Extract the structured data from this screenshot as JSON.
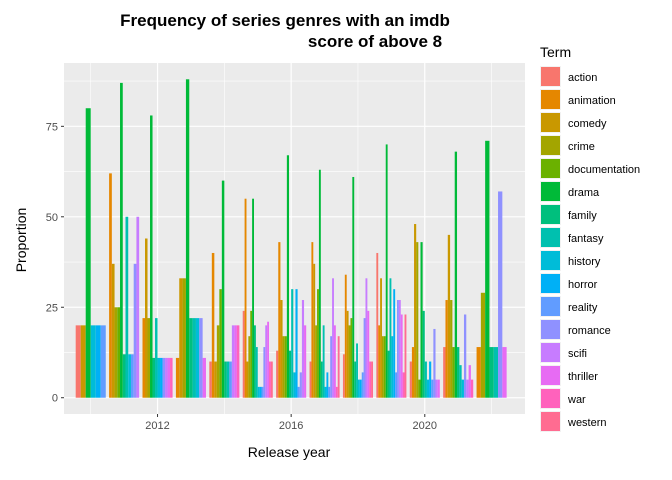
{
  "chart_data": {
    "type": "bar",
    "title_lines": [
      "Frequency of series genres with an imdb",
      "score of above 8"
    ],
    "xlabel": "Release year",
    "ylabel": "Proportion",
    "legend_title": "Term",
    "legend_position": "right",
    "grid": true,
    "xlim": [
      2009.2,
      2023.0
    ],
    "ylim": [
      -4.5,
      92.5
    ],
    "x_ticks": [
      2012,
      2016,
      2020
    ],
    "y_ticks": [
      0,
      25,
      50,
      75
    ],
    "terms": [
      {
        "name": "action",
        "color": "#F8766D"
      },
      {
        "name": "animation",
        "color": "#E58700"
      },
      {
        "name": "comedy",
        "color": "#C99800"
      },
      {
        "name": "crime",
        "color": "#A3A500"
      },
      {
        "name": "documentation",
        "color": "#6BB100"
      },
      {
        "name": "drama",
        "color": "#00BA38"
      },
      {
        "name": "family",
        "color": "#00BF7D"
      },
      {
        "name": "fantasy",
        "color": "#00C0AF"
      },
      {
        "name": "history",
        "color": "#00BCD8"
      },
      {
        "name": "horror",
        "color": "#00B0F6"
      },
      {
        "name": "reality",
        "color": "#619CFF"
      },
      {
        "name": "romance",
        "color": "#8F91FF"
      },
      {
        "name": "scifi",
        "color": "#C77CFF"
      },
      {
        "name": "thriller",
        "color": "#E76BF3"
      },
      {
        "name": "war",
        "color": "#FF62BC"
      },
      {
        "name": "western",
        "color": "#FF6C91"
      }
    ],
    "groups": [
      {
        "x": 2010,
        "bars": [
          {
            "term": "action",
            "value": 20
          },
          {
            "term": "comedy",
            "value": 20
          },
          {
            "term": "drama",
            "value": 80
          },
          {
            "term": "history",
            "value": 20
          },
          {
            "term": "horror",
            "value": 20
          },
          {
            "term": "reality",
            "value": 20
          }
        ]
      },
      {
        "x": 2011,
        "bars": [
          {
            "term": "animation",
            "value": 62
          },
          {
            "term": "comedy",
            "value": 37
          },
          {
            "term": "crime",
            "value": 25
          },
          {
            "term": "documentation",
            "value": 25
          },
          {
            "term": "drama",
            "value": 87
          },
          {
            "term": "family",
            "value": 12
          },
          {
            "term": "fantasy",
            "value": 50
          },
          {
            "term": "history",
            "value": 12
          },
          {
            "term": "reality",
            "value": 12
          },
          {
            "term": "romance",
            "value": 37
          },
          {
            "term": "scifi",
            "value": 50
          }
        ]
      },
      {
        "x": 2012,
        "bars": [
          {
            "term": "animation",
            "value": 22
          },
          {
            "term": "comedy",
            "value": 44
          },
          {
            "term": "crime",
            "value": 22
          },
          {
            "term": "drama",
            "value": 78
          },
          {
            "term": "family",
            "value": 11
          },
          {
            "term": "fantasy",
            "value": 22
          },
          {
            "term": "history",
            "value": 11
          },
          {
            "term": "horror",
            "value": 11
          },
          {
            "term": "romance",
            "value": 11
          },
          {
            "term": "scifi",
            "value": 11
          },
          {
            "term": "thriller",
            "value": 11
          },
          {
            "term": "war",
            "value": 11
          }
        ]
      },
      {
        "x": 2013,
        "bars": [
          {
            "term": "animation",
            "value": 11
          },
          {
            "term": "comedy",
            "value": 33
          },
          {
            "term": "crime",
            "value": 33
          },
          {
            "term": "drama",
            "value": 88
          },
          {
            "term": "family",
            "value": 22
          },
          {
            "term": "fantasy",
            "value": 22
          },
          {
            "term": "history",
            "value": 22
          },
          {
            "term": "romance",
            "value": 22
          },
          {
            "term": "thriller",
            "value": 11
          }
        ]
      },
      {
        "x": 2014,
        "bars": [
          {
            "term": "action",
            "value": 10
          },
          {
            "term": "animation",
            "value": 40
          },
          {
            "term": "comedy",
            "value": 10
          },
          {
            "term": "crime",
            "value": 20
          },
          {
            "term": "documentation",
            "value": 30
          },
          {
            "term": "drama",
            "value": 60
          },
          {
            "term": "family",
            "value": 10
          },
          {
            "term": "fantasy",
            "value": 10
          },
          {
            "term": "reality",
            "value": 10
          },
          {
            "term": "scifi",
            "value": 20
          },
          {
            "term": "thriller",
            "value": 20
          },
          {
            "term": "war",
            "value": 20
          }
        ]
      },
      {
        "x": 2015,
        "bars": [
          {
            "term": "action",
            "value": 24
          },
          {
            "term": "animation",
            "value": 55
          },
          {
            "term": "comedy",
            "value": 10
          },
          {
            "term": "crime",
            "value": 17
          },
          {
            "term": "documentation",
            "value": 24
          },
          {
            "term": "drama",
            "value": 55
          },
          {
            "term": "family",
            "value": 20
          },
          {
            "term": "fantasy",
            "value": 14
          },
          {
            "term": "history",
            "value": 3
          },
          {
            "term": "horror",
            "value": 3
          },
          {
            "term": "reality",
            "value": 3
          },
          {
            "term": "romance",
            "value": 14
          },
          {
            "term": "scifi",
            "value": 20
          },
          {
            "term": "thriller",
            "value": 21
          },
          {
            "term": "war",
            "value": 10
          },
          {
            "term": "western",
            "value": 10
          }
        ]
      },
      {
        "x": 2016,
        "bars": [
          {
            "term": "action",
            "value": 13
          },
          {
            "term": "animation",
            "value": 43
          },
          {
            "term": "comedy",
            "value": 27
          },
          {
            "term": "crime",
            "value": 17
          },
          {
            "term": "documentation",
            "value": 17
          },
          {
            "term": "drama",
            "value": 67
          },
          {
            "term": "family",
            "value": 13
          },
          {
            "term": "fantasy",
            "value": 30
          },
          {
            "term": "history",
            "value": 7
          },
          {
            "term": "horror",
            "value": 30
          },
          {
            "term": "reality",
            "value": 3
          },
          {
            "term": "romance",
            "value": 7
          },
          {
            "term": "scifi",
            "value": 27
          },
          {
            "term": "thriller",
            "value": 20
          }
        ]
      },
      {
        "x": 2017,
        "bars": [
          {
            "term": "action",
            "value": 10
          },
          {
            "term": "animation",
            "value": 43
          },
          {
            "term": "comedy",
            "value": 37
          },
          {
            "term": "crime",
            "value": 20
          },
          {
            "term": "documentation",
            "value": 30
          },
          {
            "term": "drama",
            "value": 63
          },
          {
            "term": "family",
            "value": 10
          },
          {
            "term": "fantasy",
            "value": 20
          },
          {
            "term": "history",
            "value": 3
          },
          {
            "term": "horror",
            "value": 7
          },
          {
            "term": "reality",
            "value": 3
          },
          {
            "term": "romance",
            "value": 17
          },
          {
            "term": "scifi",
            "value": 33
          },
          {
            "term": "thriller",
            "value": 20
          },
          {
            "term": "war",
            "value": 3
          },
          {
            "term": "western",
            "value": 17
          }
        ]
      },
      {
        "x": 2018,
        "bars": [
          {
            "term": "action",
            "value": 12
          },
          {
            "term": "animation",
            "value": 34
          },
          {
            "term": "comedy",
            "value": 24
          },
          {
            "term": "crime",
            "value": 20
          },
          {
            "term": "documentation",
            "value": 22
          },
          {
            "term": "drama",
            "value": 61
          },
          {
            "term": "family",
            "value": 10
          },
          {
            "term": "fantasy",
            "value": 15
          },
          {
            "term": "history",
            "value": 5
          },
          {
            "term": "horror",
            "value": 5
          },
          {
            "term": "reality",
            "value": 7
          },
          {
            "term": "romance",
            "value": 22
          },
          {
            "term": "scifi",
            "value": 33
          },
          {
            "term": "thriller",
            "value": 24
          },
          {
            "term": "war",
            "value": 10
          },
          {
            "term": "western",
            "value": 10
          }
        ]
      },
      {
        "x": 2019,
        "bars": [
          {
            "term": "action",
            "value": 40
          },
          {
            "term": "animation",
            "value": 20
          },
          {
            "term": "comedy",
            "value": 33
          },
          {
            "term": "crime",
            "value": 17
          },
          {
            "term": "documentation",
            "value": 17
          },
          {
            "term": "drama",
            "value": 70
          },
          {
            "term": "family",
            "value": 13
          },
          {
            "term": "fantasy",
            "value": 33
          },
          {
            "term": "history",
            "value": 17
          },
          {
            "term": "horror",
            "value": 30
          },
          {
            "term": "reality",
            "value": 7
          },
          {
            "term": "romance",
            "value": 27
          },
          {
            "term": "scifi",
            "value": 27
          },
          {
            "term": "thriller",
            "value": 23
          },
          {
            "term": "war",
            "value": 7
          },
          {
            "term": "western",
            "value": 23
          }
        ]
      },
      {
        "x": 2020,
        "bars": [
          {
            "term": "action",
            "value": 10
          },
          {
            "term": "animation",
            "value": 14
          },
          {
            "term": "comedy",
            "value": 48
          },
          {
            "term": "crime",
            "value": 43
          },
          {
            "term": "documentation",
            "value": 5
          },
          {
            "term": "drama",
            "value": 43
          },
          {
            "term": "family",
            "value": 24
          },
          {
            "term": "fantasy",
            "value": 10
          },
          {
            "term": "history",
            "value": 5
          },
          {
            "term": "horror",
            "value": 10
          },
          {
            "term": "reality",
            "value": 5
          },
          {
            "term": "romance",
            "value": 19
          },
          {
            "term": "scifi",
            "value": 5
          },
          {
            "term": "thriller",
            "value": 5
          }
        ]
      },
      {
        "x": 2021,
        "bars": [
          {
            "term": "action",
            "value": 14
          },
          {
            "term": "animation",
            "value": 27
          },
          {
            "term": "comedy",
            "value": 45
          },
          {
            "term": "crime",
            "value": 27
          },
          {
            "term": "documentation",
            "value": 14
          },
          {
            "term": "drama",
            "value": 68
          },
          {
            "term": "family",
            "value": 14
          },
          {
            "term": "fantasy",
            "value": 9
          },
          {
            "term": "history",
            "value": 5
          },
          {
            "term": "romance",
            "value": 23
          },
          {
            "term": "scifi",
            "value": 5
          },
          {
            "term": "thriller",
            "value": 9
          },
          {
            "term": "war",
            "value": 5
          }
        ]
      },
      {
        "x": 2022,
        "bars": [
          {
            "term": "animation",
            "value": 14
          },
          {
            "term": "crime",
            "value": 29
          },
          {
            "term": "drama",
            "value": 71
          },
          {
            "term": "family",
            "value": 14
          },
          {
            "term": "fantasy",
            "value": 14
          },
          {
            "term": "romance",
            "value": 57
          },
          {
            "term": "thriller",
            "value": 14
          }
        ]
      }
    ]
  }
}
